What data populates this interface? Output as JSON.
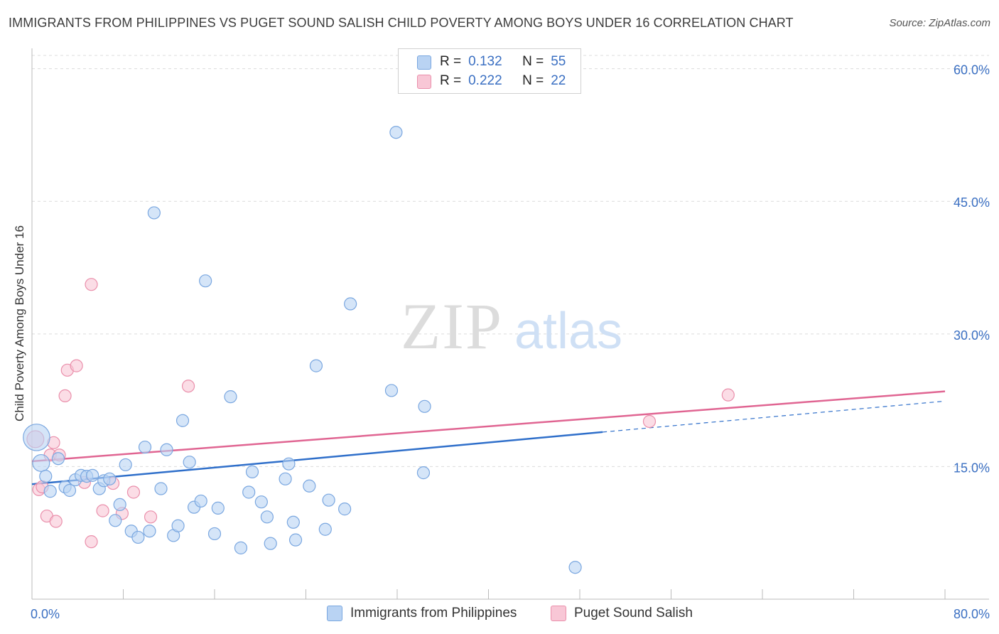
{
  "title": "IMMIGRANTS FROM PHILIPPINES VS PUGET SOUND SALISH CHILD POVERTY AMONG BOYS UNDER 16 CORRELATION CHART",
  "source": "Source: ZipAtlas.com",
  "watermark": {
    "zip": "ZIP",
    "atlas": "atlas"
  },
  "colors": {
    "blue_fill": "#b9d3f3",
    "blue_stroke": "#7aa7e0",
    "blue_line": "#2f6fca",
    "pink_fill": "#f8c7d6",
    "pink_stroke": "#ea8fab",
    "pink_line": "#e06592",
    "tick_text": "#3a6fc2"
  },
  "legend": {
    "rows": [
      {
        "r_label": "R =",
        "r_value": "0.132",
        "n_label": "N =",
        "n_value": "55"
      },
      {
        "r_label": "R =",
        "r_value": "0.222",
        "n_label": "N =",
        "n_value": "22"
      }
    ]
  },
  "bottom_legend": [
    "Immigrants from Philippines",
    "Puget Sound Salish"
  ],
  "chart_data": {
    "type": "scatter",
    "title": "IMMIGRANTS FROM PHILIPPINES VS PUGET SOUND SALISH CHILD POVERTY AMONG BOYS UNDER 16 CORRELATION CHART",
    "xlabel": "",
    "ylabel": "Child Poverty Among Boys Under 16",
    "xlim": [
      0,
      80
    ],
    "ylim": [
      0,
      61.5
    ],
    "x_tick_labels": [
      "0.0%",
      "80.0%"
    ],
    "y_ticks": [
      15,
      30,
      45,
      60
    ],
    "y_tick_labels": [
      "15.0%",
      "30.0%",
      "45.0%",
      "60.0%"
    ],
    "grid": true,
    "legend_position": "top-center",
    "series": [
      {
        "name": "Immigrants from Philippines",
        "color": "#b9d3f3",
        "R": 0.132,
        "N": 55,
        "trend": {
          "x0": 0,
          "y0": 13.0,
          "x1": 50,
          "y1": 18.9,
          "dashed_to_x": 80,
          "dashed_to_y": 22.4
        },
        "points": [
          [
            0.4,
            18.3,
            2.2
          ],
          [
            0.8,
            15.4,
            1.4
          ],
          [
            1.2,
            13.9,
            1
          ],
          [
            1.6,
            12.2,
            1
          ],
          [
            2.3,
            15.9,
            1
          ],
          [
            2.9,
            12.7,
            1
          ],
          [
            3.3,
            12.3,
            1
          ],
          [
            3.8,
            13.5,
            1
          ],
          [
            4.3,
            14.0,
            1
          ],
          [
            4.8,
            13.9,
            1
          ],
          [
            5.3,
            14.0,
            1
          ],
          [
            5.9,
            12.5,
            1
          ],
          [
            6.3,
            13.4,
            1
          ],
          [
            6.8,
            13.6,
            1
          ],
          [
            7.3,
            8.9,
            1
          ],
          [
            7.7,
            10.7,
            1
          ],
          [
            8.2,
            15.2,
            1
          ],
          [
            8.7,
            7.7,
            1
          ],
          [
            9.3,
            7.0,
            1
          ],
          [
            9.9,
            17.2,
            1
          ],
          [
            10.3,
            7.7,
            1
          ],
          [
            10.7,
            43.7,
            1
          ],
          [
            11.3,
            12.5,
            1
          ],
          [
            11.8,
            16.9,
            1
          ],
          [
            12.4,
            7.2,
            1
          ],
          [
            12.8,
            8.3,
            1
          ],
          [
            13.2,
            20.2,
            1
          ],
          [
            13.8,
            15.5,
            1
          ],
          [
            14.2,
            10.4,
            1
          ],
          [
            14.8,
            11.1,
            1
          ],
          [
            15.2,
            36.0,
            1
          ],
          [
            16.0,
            7.4,
            1
          ],
          [
            16.3,
            10.3,
            1
          ],
          [
            17.4,
            22.9,
            1
          ],
          [
            18.3,
            5.8,
            1
          ],
          [
            19.0,
            12.1,
            1
          ],
          [
            19.3,
            14.4,
            1
          ],
          [
            20.1,
            11.0,
            1
          ],
          [
            20.6,
            9.3,
            1
          ],
          [
            20.9,
            6.3,
            1
          ],
          [
            22.2,
            13.6,
            1
          ],
          [
            22.5,
            15.3,
            1
          ],
          [
            22.9,
            8.7,
            1
          ],
          [
            23.1,
            6.7,
            1
          ],
          [
            24.3,
            12.8,
            1
          ],
          [
            24.9,
            26.4,
            1
          ],
          [
            25.7,
            7.9,
            1
          ],
          [
            26.0,
            11.2,
            1
          ],
          [
            27.4,
            10.2,
            1
          ],
          [
            27.9,
            33.4,
            1
          ],
          [
            31.5,
            23.6,
            1
          ],
          [
            31.9,
            52.8,
            1
          ],
          [
            34.4,
            21.8,
            1
          ],
          [
            34.3,
            14.3,
            1
          ],
          [
            47.6,
            3.6,
            1
          ]
        ]
      },
      {
        "name": "Puget Sound Salish",
        "color": "#f8c7d6",
        "R": 0.222,
        "N": 22,
        "trend": {
          "x0": 0,
          "y0": 15.6,
          "x1": 80,
          "y1": 23.5
        },
        "points": [
          [
            0.3,
            18.1,
            1.4
          ],
          [
            0.6,
            12.4,
            1
          ],
          [
            0.9,
            12.7,
            1
          ],
          [
            1.3,
            9.4,
            1
          ],
          [
            1.6,
            16.3,
            1
          ],
          [
            1.9,
            17.7,
            1
          ],
          [
            2.1,
            8.8,
            1
          ],
          [
            2.4,
            16.3,
            1
          ],
          [
            2.9,
            23.0,
            1
          ],
          [
            3.1,
            25.9,
            1
          ],
          [
            3.9,
            26.4,
            1
          ],
          [
            4.6,
            13.2,
            1
          ],
          [
            5.2,
            35.6,
            1
          ],
          [
            6.2,
            10.0,
            1
          ],
          [
            7.1,
            13.1,
            1
          ],
          [
            7.9,
            9.7,
            1
          ],
          [
            5.2,
            6.5,
            1
          ],
          [
            8.9,
            12.1,
            1
          ],
          [
            10.4,
            9.3,
            1
          ],
          [
            13.7,
            24.1,
            1
          ],
          [
            54.1,
            20.1,
            1
          ],
          [
            61.0,
            23.1,
            1
          ]
        ]
      }
    ]
  }
}
